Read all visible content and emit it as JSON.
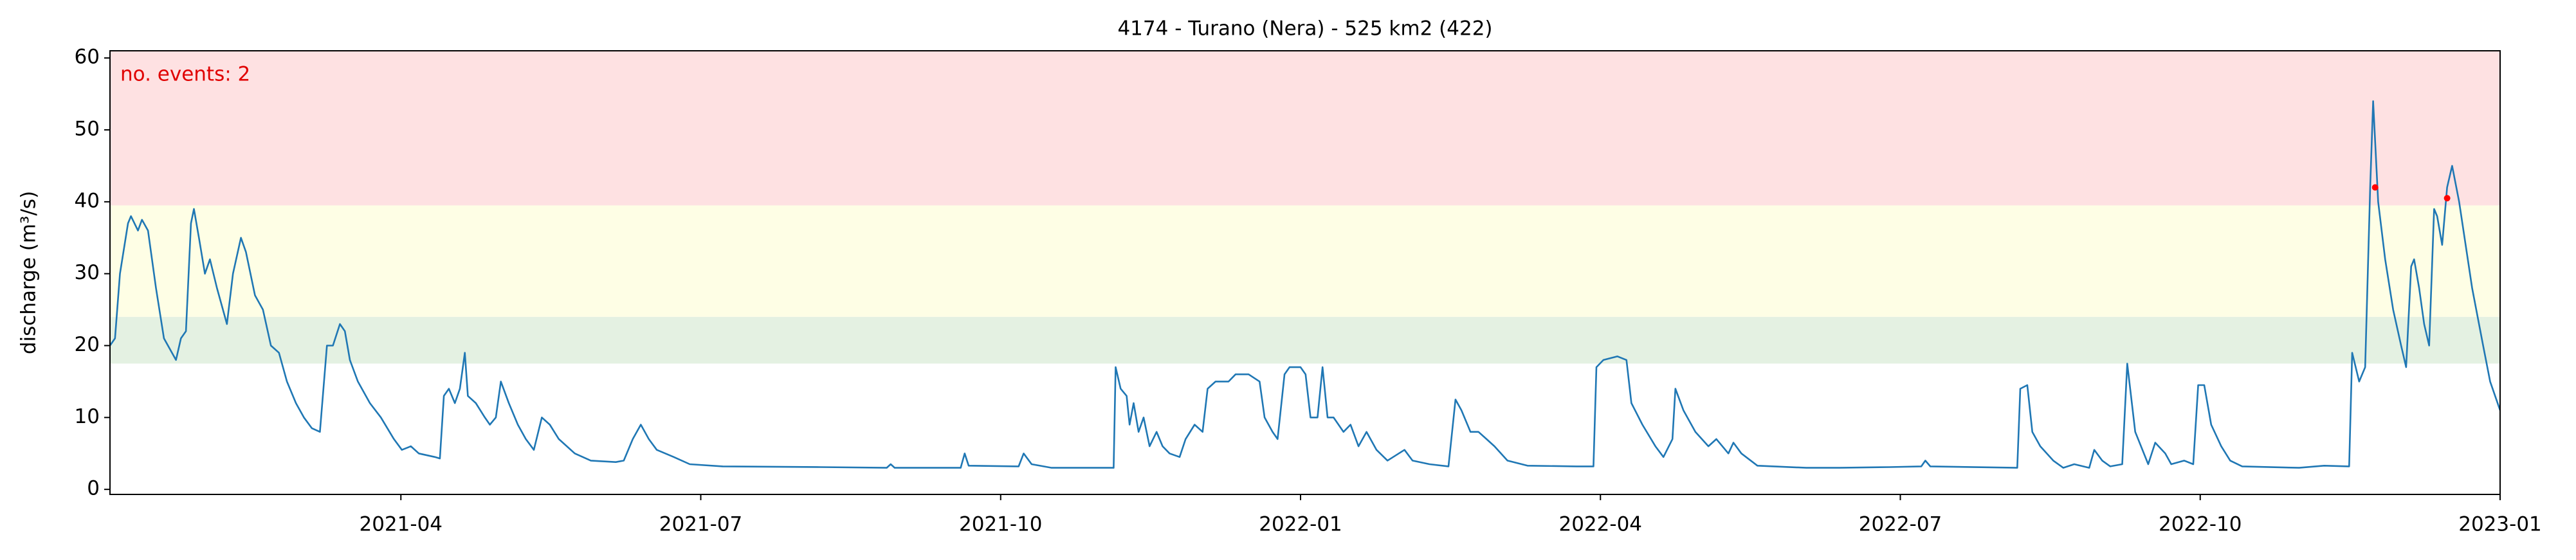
{
  "chart_data": {
    "type": "line",
    "title": "4174 - Turano (Nera) - 525 km2 (422)",
    "y_label": "discharge (m³/s)",
    "annotation": "no. events: 2",
    "annotation_color": "#e00000",
    "xlim": [
      0.09,
      24
    ],
    "ylim": [
      -0.7,
      61
    ],
    "xticks": [
      {
        "value": 3,
        "label": "2021-04"
      },
      {
        "value": 6,
        "label": "2021-07"
      },
      {
        "value": 9,
        "label": "2021-10"
      },
      {
        "value": 12,
        "label": "2022-01"
      },
      {
        "value": 15,
        "label": "2022-04"
      },
      {
        "value": 18,
        "label": "2022-07"
      },
      {
        "value": 21,
        "label": "2022-10"
      },
      {
        "value": 24,
        "label": "2023-01"
      }
    ],
    "yticks": [
      0,
      10,
      20,
      30,
      40,
      50,
      60
    ],
    "bands": [
      {
        "from": 17.5,
        "to": 24,
        "color": "#e4f1e2"
      },
      {
        "from": 24,
        "to": 39.5,
        "color": "#fefee5"
      },
      {
        "from": 39.5,
        "to": 61,
        "color": "#fee1e2"
      }
    ],
    "series": [
      {
        "color": "#1f77b4",
        "x": [
          0.09,
          0.14,
          0.19,
          0.27,
          0.3,
          0.37,
          0.41,
          0.47,
          0.55,
          0.63,
          0.71,
          0.75,
          0.8,
          0.85,
          0.9,
          0.93,
          0.98,
          1.04,
          1.09,
          1.16,
          1.26,
          1.32,
          1.4,
          1.45,
          1.54,
          1.62,
          1.7,
          1.78,
          1.86,
          1.95,
          2.03,
          2.11,
          2.19,
          2.26,
          2.32,
          2.39,
          2.44,
          2.49,
          2.57,
          2.69,
          2.8,
          2.93,
          3.01,
          3.1,
          3.18,
          3.34,
          3.39,
          3.43,
          3.48,
          3.54,
          3.59,
          3.64,
          3.67,
          3.75,
          3.84,
          3.89,
          3.95,
          4.0,
          4.08,
          4.17,
          4.25,
          4.33,
          4.41,
          4.49,
          4.58,
          4.74,
          4.9,
          5.15,
          5.23,
          5.32,
          5.4,
          5.48,
          5.56,
          5.73,
          5.89,
          6.22,
          7.2,
          7.86,
          7.9,
          7.94,
          8.6,
          8.64,
          8.68,
          9.18,
          9.23,
          9.31,
          9.51,
          10.13,
          10.15,
          10.2,
          10.26,
          10.29,
          10.33,
          10.38,
          10.43,
          10.49,
          10.56,
          10.62,
          10.69,
          10.79,
          10.85,
          10.94,
          11.02,
          11.07,
          11.15,
          11.28,
          11.35,
          11.48,
          11.59,
          11.64,
          11.72,
          11.77,
          11.84,
          11.89,
          12.0,
          12.05,
          12.1,
          12.17,
          12.22,
          12.27,
          12.33,
          12.43,
          12.5,
          12.58,
          12.66,
          12.76,
          12.87,
          13.04,
          13.12,
          13.29,
          13.48,
          13.55,
          13.61,
          13.7,
          13.78,
          13.86,
          13.94,
          14.07,
          14.27,
          14.76,
          14.93,
          14.96,
          15.03,
          15.17,
          15.26,
          15.31,
          15.42,
          15.55,
          15.63,
          15.72,
          15.75,
          15.83,
          15.95,
          16.08,
          16.16,
          16.28,
          16.33,
          16.41,
          16.57,
          17.06,
          17.39,
          17.89,
          18.21,
          18.25,
          18.3,
          19.17,
          19.2,
          19.27,
          19.32,
          19.4,
          19.53,
          19.63,
          19.74,
          19.89,
          19.94,
          20.02,
          20.1,
          20.22,
          20.27,
          20.35,
          20.48,
          20.55,
          20.65,
          20.71,
          20.84,
          20.93,
          20.98,
          21.04,
          21.11,
          21.21,
          21.3,
          21.42,
          21.99,
          22.24,
          22.49,
          22.52,
          22.59,
          22.65,
          22.7,
          22.73,
          22.78,
          22.85,
          22.93,
          23.01,
          23.06,
          23.11,
          23.14,
          23.19,
          23.24,
          23.29,
          23.34,
          23.37,
          23.42,
          23.47,
          23.52,
          23.59,
          23.72,
          23.83,
          23.9,
          24.0
        ],
        "values": [
          20,
          21,
          30,
          37,
          38,
          36,
          37.5,
          36,
          28,
          21,
          19,
          18,
          21,
          22,
          37,
          39,
          35,
          30,
          32,
          28,
          23,
          30,
          35,
          33,
          27,
          25,
          20,
          19,
          15,
          12,
          10,
          8.5,
          8,
          20,
          20,
          23,
          22,
          18,
          15,
          12,
          10,
          7,
          5.5,
          6,
          5,
          4.5,
          4.3,
          13,
          14,
          12,
          14,
          19,
          13,
          12,
          10,
          9,
          10,
          15,
          12,
          9,
          7,
          5.5,
          10,
          9,
          7,
          5,
          4,
          3.8,
          4,
          7,
          9,
          7,
          5.5,
          4.5,
          3.5,
          3.2,
          3.1,
          3,
          3.5,
          3,
          3,
          5,
          3.3,
          3.2,
          5,
          3.5,
          3,
          3,
          17,
          14,
          13,
          9,
          12,
          8,
          10,
          6,
          8,
          6,
          5,
          4.5,
          7,
          9,
          8,
          14,
          15,
          15,
          16,
          16,
          15,
          10,
          8,
          7,
          16,
          17,
          17,
          16,
          10,
          10,
          17,
          10,
          10,
          8,
          9,
          6,
          8,
          5.5,
          4,
          5.5,
          4,
          3.5,
          3.2,
          12.5,
          11,
          8,
          8,
          7,
          6,
          4,
          3.3,
          3.2,
          3.2,
          17,
          18,
          18.5,
          18,
          12,
          9,
          6,
          4.5,
          7,
          14,
          11,
          8,
          6,
          7,
          5,
          6.5,
          5,
          3.3,
          3,
          3,
          3.1,
          3.2,
          4,
          3.2,
          3,
          14,
          14.5,
          8,
          6,
          4,
          3,
          3.5,
          3,
          5.5,
          4,
          3.2,
          3.5,
          17.5,
          8,
          3.5,
          6.5,
          5,
          3.5,
          4,
          3.5,
          14.5,
          14.5,
          9,
          6,
          4,
          3.2,
          3,
          3.3,
          3.2,
          19,
          15,
          17,
          42,
          54,
          40,
          32,
          25,
          20,
          17,
          31,
          32,
          28,
          23,
          20,
          39,
          38,
          34,
          42,
          45,
          40,
          28,
          20,
          15,
          11
        ]
      }
    ],
    "events": {
      "color": "#ff0000",
      "x": [
        22.75,
        23.47
      ],
      "values": [
        42,
        40.5
      ]
    }
  }
}
